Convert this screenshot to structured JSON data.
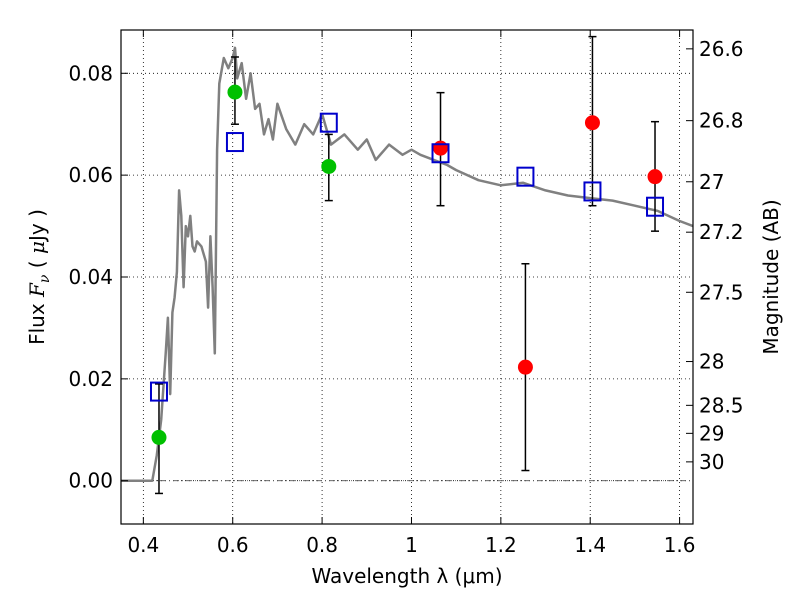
{
  "chart_data": {
    "type": "scatter",
    "xlabel": "Wavelength  λ (μm)",
    "ylabel_left": "Flux  F_ν  ( μJy )",
    "ylabel_left_parts": [
      "Flux  ",
      "F",
      "ν",
      "  ( ",
      "μ",
      "Jy )"
    ],
    "ylabel_right": "Magnitude (AB)",
    "xlim": [
      0.35,
      1.63
    ],
    "ylim": [
      -0.0085,
      0.0885
    ],
    "grid": true,
    "x_ticks": [
      0.4,
      0.6,
      0.8,
      1.0,
      1.2,
      1.4,
      1.6
    ],
    "x_tick_labels": [
      "0.4",
      "0.6",
      "0.8",
      "1",
      "1.2",
      "1.4",
      "1.6"
    ],
    "y_ticks": [
      0.0,
      0.02,
      0.04,
      0.06,
      0.08
    ],
    "y_tick_labels": [
      "0.00",
      "0.02",
      "0.04",
      "0.06",
      "0.08"
    ],
    "mag_ticks": [
      {
        "label": "26.6",
        "flux": 0.0848
      },
      {
        "label": "26.8",
        "flux": 0.0707
      },
      {
        "label": "27",
        "flux": 0.0587
      },
      {
        "label": "27.2",
        "flux": 0.0488
      },
      {
        "label": "27.5",
        "flux": 0.037
      },
      {
        "label": "28",
        "flux": 0.0234
      },
      {
        "label": "28.5",
        "flux": 0.0148
      },
      {
        "label": "29",
        "flux": 0.0093
      },
      {
        "label": "30",
        "flux": 0.0037
      }
    ],
    "sed_model": {
      "color": "#808080",
      "x": [
        0.35,
        0.41,
        0.42,
        0.43,
        0.44,
        0.45,
        0.455,
        0.46,
        0.465,
        0.47,
        0.475,
        0.48,
        0.485,
        0.49,
        0.495,
        0.5,
        0.505,
        0.51,
        0.515,
        0.52,
        0.53,
        0.54,
        0.545,
        0.55,
        0.555,
        0.56,
        0.565,
        0.57,
        0.58,
        0.59,
        0.6,
        0.605,
        0.61,
        0.62,
        0.63,
        0.64,
        0.65,
        0.66,
        0.67,
        0.68,
        0.69,
        0.7,
        0.72,
        0.74,
        0.76,
        0.78,
        0.8,
        0.82,
        0.85,
        0.88,
        0.9,
        0.92,
        0.95,
        0.98,
        1.0,
        1.02,
        1.05,
        1.08,
        1.1,
        1.15,
        1.2,
        1.25,
        1.3,
        1.35,
        1.4,
        1.45,
        1.5,
        1.55,
        1.6,
        1.63
      ],
      "y": [
        0.0,
        0.0,
        0.0,
        0.005,
        0.012,
        0.025,
        0.032,
        0.017,
        0.033,
        0.036,
        0.041,
        0.057,
        0.052,
        0.038,
        0.05,
        0.048,
        0.052,
        0.046,
        0.045,
        0.047,
        0.046,
        0.043,
        0.034,
        0.048,
        0.038,
        0.025,
        0.065,
        0.078,
        0.083,
        0.081,
        0.083,
        0.085,
        0.079,
        0.082,
        0.075,
        0.08,
        0.073,
        0.074,
        0.068,
        0.071,
        0.067,
        0.074,
        0.069,
        0.066,
        0.07,
        0.068,
        0.072,
        0.066,
        0.068,
        0.065,
        0.067,
        0.063,
        0.066,
        0.064,
        0.065,
        0.064,
        0.063,
        0.062,
        0.061,
        0.059,
        0.058,
        0.0585,
        0.057,
        0.056,
        0.0555,
        0.055,
        0.054,
        0.053,
        0.051,
        0.05
      ]
    },
    "series": [
      {
        "marker": "circle",
        "color": "#00c000",
        "points": [
          {
            "x": 0.435,
            "y": 0.0085,
            "yerr_low": -0.0025,
            "yerr_high": 0.019
          },
          {
            "x": 0.605,
            "y": 0.0763,
            "yerr_low": 0.07,
            "yerr_high": 0.0832
          },
          {
            "x": 0.815,
            "y": 0.0617,
            "yerr_low": 0.055,
            "yerr_high": 0.068
          }
        ]
      },
      {
        "marker": "circle",
        "color": "#ff0000",
        "points": [
          {
            "x": 1.065,
            "y": 0.0653,
            "yerr_low": 0.054,
            "yerr_high": 0.0762
          },
          {
            "x": 1.255,
            "y": 0.0223,
            "yerr_low": 0.002,
            "yerr_high": 0.0426
          },
          {
            "x": 1.405,
            "y": 0.0703,
            "yerr_low": 0.054,
            "yerr_high": 0.0872
          },
          {
            "x": 1.545,
            "y": 0.0597,
            "yerr_low": 0.049,
            "yerr_high": 0.0705
          }
        ]
      },
      {
        "marker": "square",
        "color": "#0000cc",
        "points": [
          {
            "x": 0.435,
            "y": 0.0175
          },
          {
            "x": 0.605,
            "y": 0.0665
          },
          {
            "x": 0.815,
            "y": 0.0703
          },
          {
            "x": 1.065,
            "y": 0.0643
          },
          {
            "x": 1.255,
            "y": 0.0597
          },
          {
            "x": 1.405,
            "y": 0.0568
          },
          {
            "x": 1.545,
            "y": 0.0538
          }
        ]
      }
    ]
  }
}
